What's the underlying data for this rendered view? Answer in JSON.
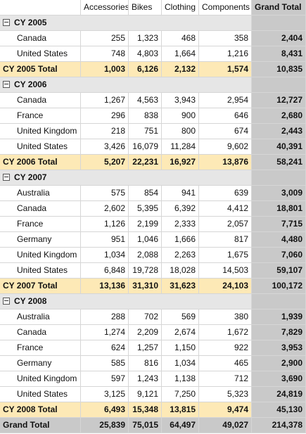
{
  "columns": [
    "Accessories",
    "Bikes",
    "Clothing",
    "Components",
    "Grand Total"
  ],
  "groups": [
    {
      "label": "CY 2005",
      "rows": [
        {
          "label": "Canada",
          "cells": [
            "255",
            "1,323",
            "468",
            "358",
            "2,404"
          ]
        },
        {
          "label": "United States",
          "cells": [
            "748",
            "4,803",
            "1,664",
            "1,216",
            "8,431"
          ]
        }
      ],
      "total": {
        "label": "CY 2005 Total",
        "cells": [
          "1,003",
          "6,126",
          "2,132",
          "1,574",
          "10,835"
        ]
      }
    },
    {
      "label": "CY 2006",
      "rows": [
        {
          "label": "Canada",
          "cells": [
            "1,267",
            "4,563",
            "3,943",
            "2,954",
            "12,727"
          ]
        },
        {
          "label": "France",
          "cells": [
            "296",
            "838",
            "900",
            "646",
            "2,680"
          ]
        },
        {
          "label": "United Kingdom",
          "cells": [
            "218",
            "751",
            "800",
            "674",
            "2,443"
          ]
        },
        {
          "label": "United States",
          "cells": [
            "3,426",
            "16,079",
            "11,284",
            "9,602",
            "40,391"
          ]
        }
      ],
      "total": {
        "label": "CY 2006 Total",
        "cells": [
          "5,207",
          "22,231",
          "16,927",
          "13,876",
          "58,241"
        ]
      }
    },
    {
      "label": "CY 2007",
      "rows": [
        {
          "label": "Australia",
          "cells": [
            "575",
            "854",
            "941",
            "639",
            "3,009"
          ]
        },
        {
          "label": "Canada",
          "cells": [
            "2,602",
            "5,395",
            "6,392",
            "4,412",
            "18,801"
          ]
        },
        {
          "label": "France",
          "cells": [
            "1,126",
            "2,199",
            "2,333",
            "2,057",
            "7,715"
          ]
        },
        {
          "label": "Germany",
          "cells": [
            "951",
            "1,046",
            "1,666",
            "817",
            "4,480"
          ]
        },
        {
          "label": "United Kingdom",
          "cells": [
            "1,034",
            "2,088",
            "2,263",
            "1,675",
            "7,060"
          ]
        },
        {
          "label": "United States",
          "cells": [
            "6,848",
            "19,728",
            "18,028",
            "14,503",
            "59,107"
          ]
        }
      ],
      "total": {
        "label": "CY 2007 Total",
        "cells": [
          "13,136",
          "31,310",
          "31,623",
          "24,103",
          "100,172"
        ]
      }
    },
    {
      "label": "CY 2008",
      "rows": [
        {
          "label": "Australia",
          "cells": [
            "288",
            "702",
            "569",
            "380",
            "1,939"
          ]
        },
        {
          "label": "Canada",
          "cells": [
            "1,274",
            "2,209",
            "2,674",
            "1,672",
            "7,829"
          ]
        },
        {
          "label": "France",
          "cells": [
            "624",
            "1,257",
            "1,150",
            "922",
            "3,953"
          ]
        },
        {
          "label": "Germany",
          "cells": [
            "585",
            "816",
            "1,034",
            "465",
            "2,900"
          ]
        },
        {
          "label": "United Kingdom",
          "cells": [
            "597",
            "1,243",
            "1,138",
            "712",
            "3,690"
          ]
        },
        {
          "label": "United States",
          "cells": [
            "3,125",
            "9,121",
            "7,250",
            "5,323",
            "24,819"
          ]
        }
      ],
      "total": {
        "label": "CY 2008 Total",
        "cells": [
          "6,493",
          "15,348",
          "13,815",
          "9,474",
          "45,130"
        ]
      }
    }
  ],
  "grand_total": {
    "label": "Grand Total",
    "cells": [
      "25,839",
      "75,015",
      "64,497",
      "49,027",
      "214,378"
    ]
  }
}
